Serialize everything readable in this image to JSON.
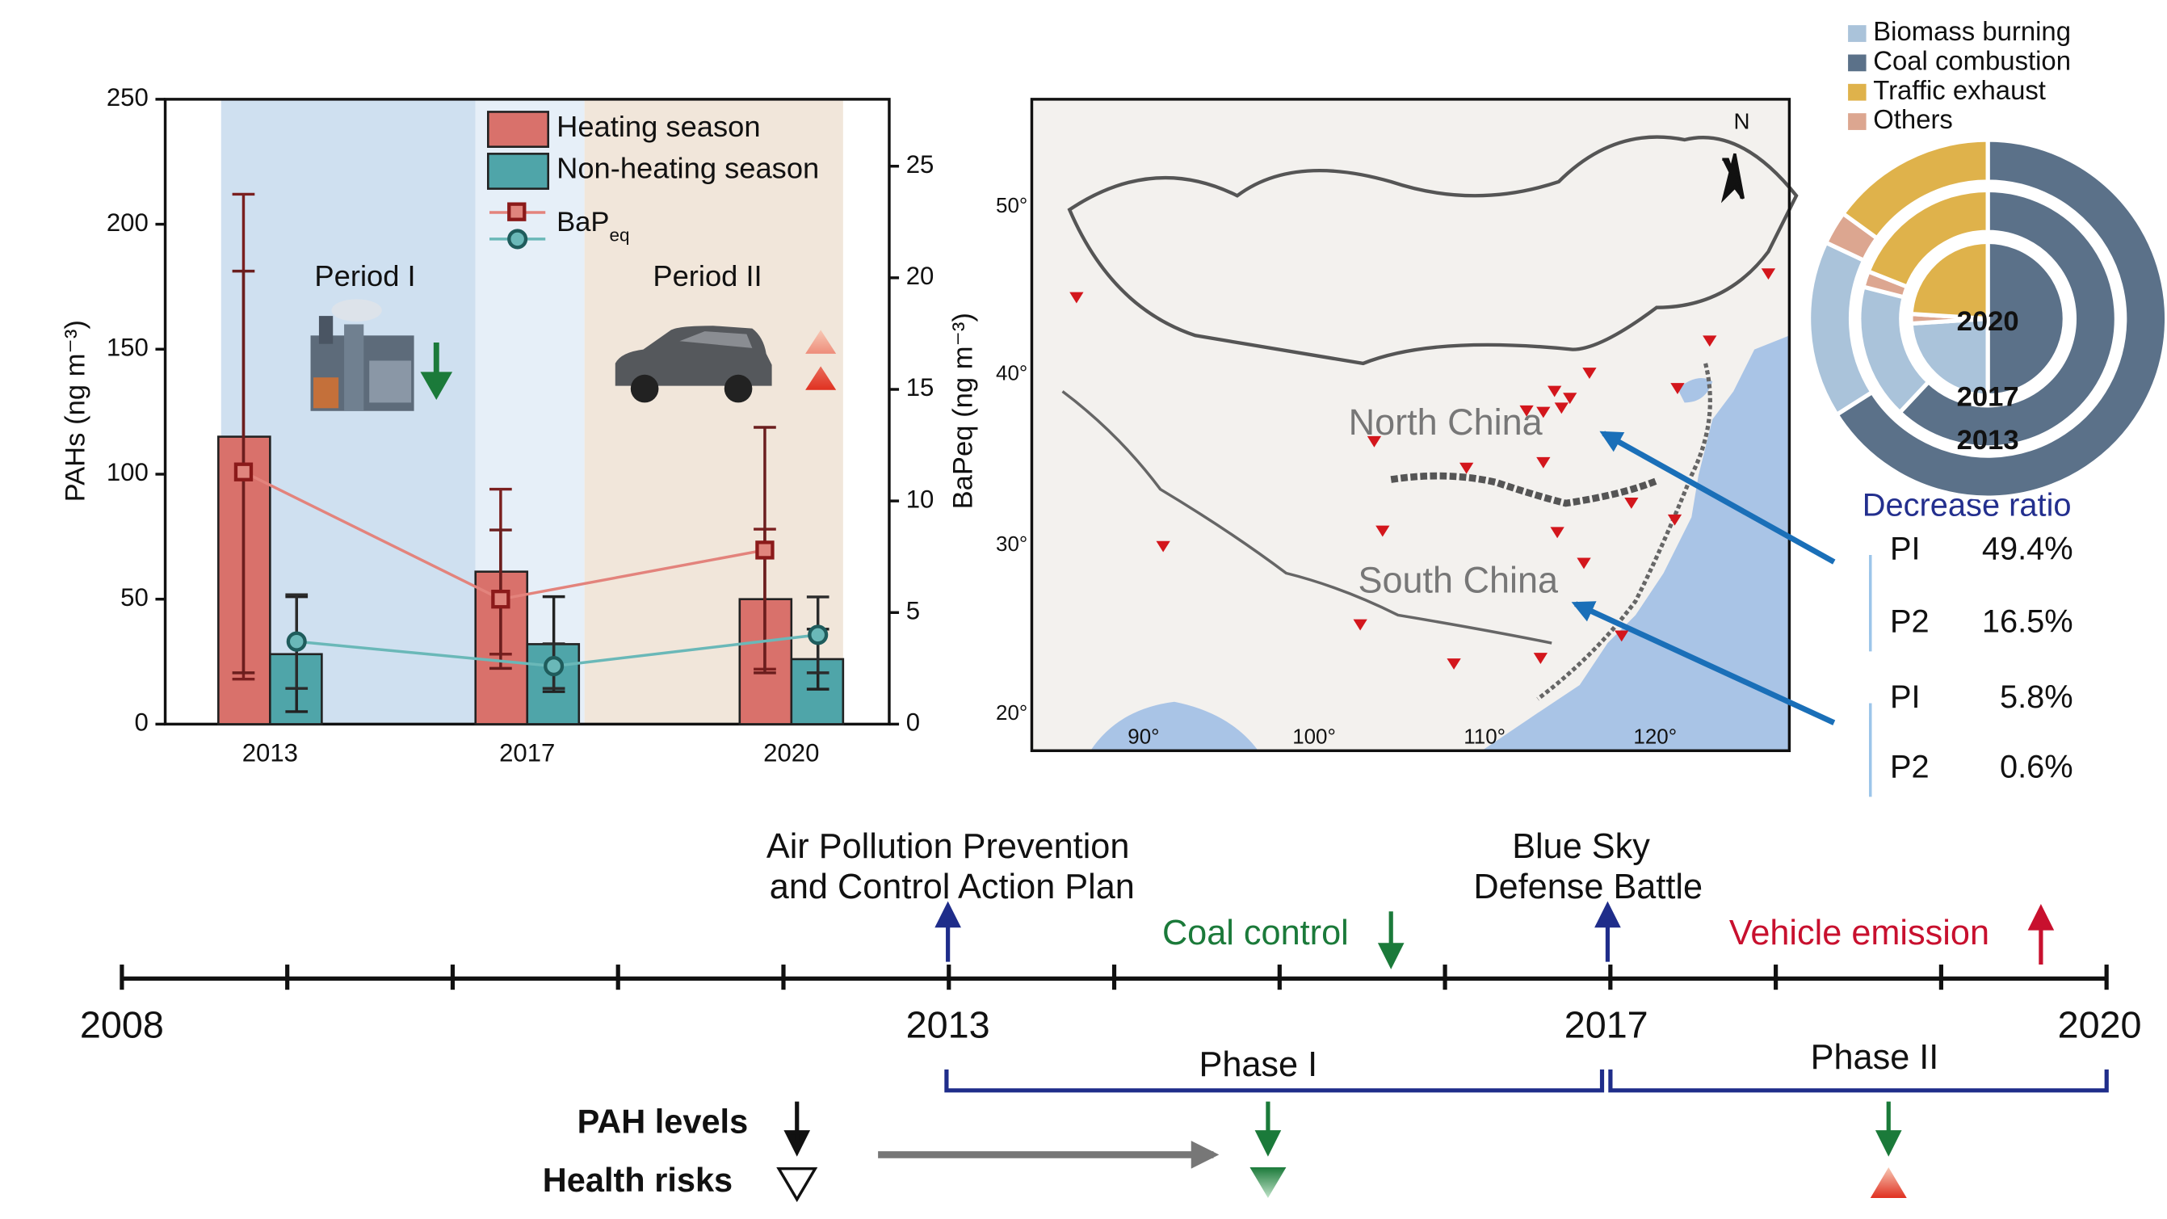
{
  "chart_data": [
    {
      "type": "bar",
      "ylabel": "PAHs (ng m⁻³)",
      "y2label": "BaPeq (ng m⁻³)",
      "categories": [
        "2013",
        "2017",
        "2020"
      ],
      "ylim": [
        0,
        250
      ],
      "yticks": [
        0,
        50,
        100,
        150,
        200,
        250
      ],
      "y2lim": [
        0,
        28
      ],
      "y2ticks": [
        0,
        5,
        10,
        15,
        20,
        25
      ],
      "series": [
        {
          "name": "Heating season",
          "color": "#d9716b",
          "values": [
            115,
            61,
            50
          ],
          "errors": [
            97,
            33,
            28
          ]
        },
        {
          "name": "Non-heating season",
          "color": "#4fa5a9",
          "values": [
            28,
            32,
            26
          ],
          "errors": [
            23,
            19,
            12
          ]
        },
        {
          "name": "BaP",
          "name_sub": "eq",
          "type": "line",
          "axis": "y2",
          "color": "#e3837c",
          "values": [
            11.3,
            5.6,
            7.8
          ],
          "errors": [
            9.0,
            3.1,
            5.5
          ]
        },
        {
          "type": "line",
          "axis": "y2",
          "color": "#6ab8b8",
          "values": [
            3.7,
            2.6,
            4.0
          ],
          "errors": [
            2.1,
            1.0,
            1.7
          ]
        }
      ],
      "annotations": [
        "Period I",
        "Period II"
      ]
    },
    {
      "type": "donut",
      "categories": [
        "2013",
        "2017",
        "2020"
      ],
      "series": [
        {
          "name": "Biomass burning",
          "color": "#aac3da",
          "values": [
            16,
            17,
            24
          ]
        },
        {
          "name": "Coal combustion",
          "color": "#5b7189",
          "values": [
            66,
            62,
            50
          ]
        },
        {
          "name": "Traffic exhaust",
          "color": "#dfb24b",
          "values": [
            15,
            19,
            24
          ]
        },
        {
          "name": "Others",
          "color": "#dca690",
          "values": [
            3,
            2,
            2
          ]
        }
      ]
    }
  ],
  "map": {
    "north": "N",
    "regions": [
      "North China",
      "South China"
    ],
    "lat_labels": [
      "50°",
      "40°",
      "30°",
      "20°"
    ],
    "lon_labels": [
      "90°",
      "100°",
      "110°",
      "120°"
    ]
  },
  "decrease_ratio": {
    "title": "Decrease ratio",
    "rows": [
      [
        "PI",
        "49.4%"
      ],
      [
        "P2",
        "16.5%"
      ],
      [
        "PI",
        "5.8%"
      ],
      [
        "P2",
        "0.6%"
      ]
    ]
  },
  "timeline": {
    "years": [
      "2008",
      "2013",
      "2017",
      "2020"
    ],
    "policies": [
      [
        "Air Pollution Prevention",
        "and Control Action Plan"
      ],
      [
        "Blue Sky",
        "Defense Battle"
      ]
    ],
    "measures": [
      "Coal control",
      "Vehicle emission"
    ],
    "phases": [
      "Phase I",
      "Phase II"
    ],
    "legend": [
      "PAH levels",
      "Health risks"
    ]
  }
}
